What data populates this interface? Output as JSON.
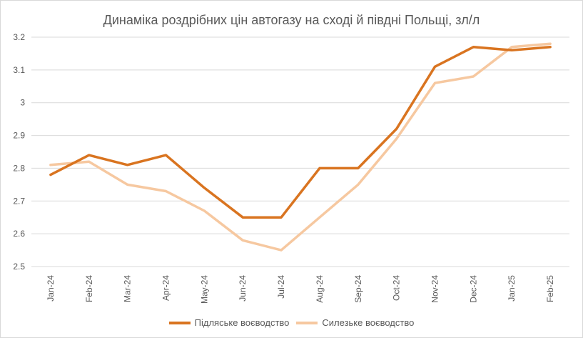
{
  "chart_data": {
    "type": "line",
    "title": "Динаміка роздрібних цін автогазу на сході й півдні Польщі, зл/л",
    "xlabel": "",
    "ylabel": "",
    "categories": [
      "Jan-24",
      "Feb-24",
      "Mar-24",
      "Apr-24",
      "May-24",
      "Jun-24",
      "Jul-24",
      "Aug-24",
      "Sep-24",
      "Oct-24",
      "Nov-24",
      "Dec-24",
      "Jan-25",
      "Feb-25"
    ],
    "ylim": [
      2.5,
      3.2
    ],
    "yticks": [
      2.5,
      2.6,
      2.7,
      2.8,
      2.9,
      3.0,
      3.1,
      3.2
    ],
    "ytick_labels": [
      "2.5",
      "2.6",
      "2.7",
      "2.8",
      "2.9",
      "3",
      "3.1",
      "3.2"
    ],
    "grid": true,
    "legend_position": "bottom",
    "series": [
      {
        "name": "Підляське воєводство",
        "color": "#d97420",
        "values": [
          2.78,
          2.84,
          2.81,
          2.84,
          2.74,
          2.65,
          2.65,
          2.8,
          2.8,
          2.92,
          3.11,
          3.17,
          3.16,
          3.17
        ]
      },
      {
        "name": "Силезьке воєводство",
        "color": "#f6c8a0",
        "values": [
          2.81,
          2.82,
          2.75,
          2.73,
          2.67,
          2.58,
          2.55,
          2.65,
          2.75,
          2.89,
          3.06,
          3.08,
          3.17,
          3.18
        ]
      }
    ]
  }
}
